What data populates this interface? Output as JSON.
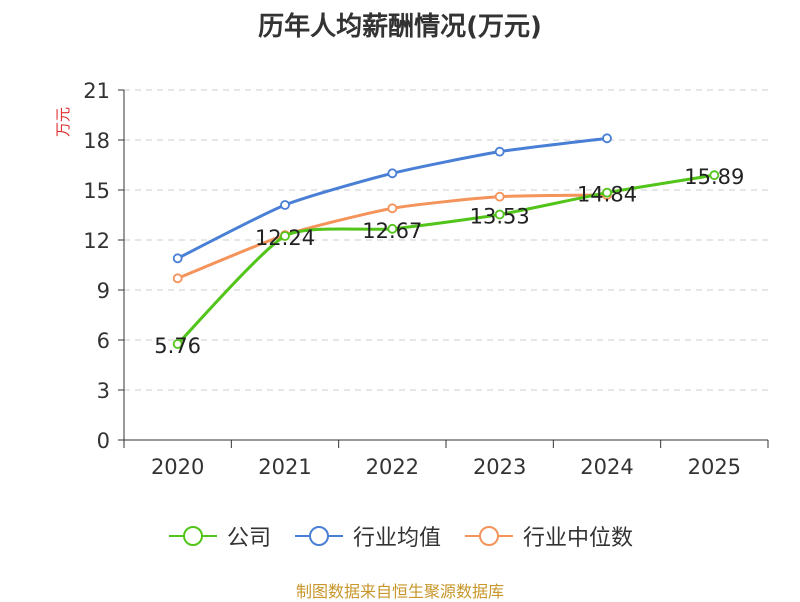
{
  "chart_data": {
    "type": "line",
    "title": "历年人均薪酬情况(万元)",
    "ylabel": "万元",
    "xlabel": "",
    "categories": [
      "2020",
      "2021",
      "2022",
      "2023",
      "2024",
      "2025"
    ],
    "ylim": [
      0,
      21
    ],
    "yticks": [
      0,
      3,
      6,
      9,
      12,
      15,
      18,
      21
    ],
    "grid": true,
    "legend_position": "bottom",
    "series": [
      {
        "name": "公司",
        "color": "#52c41a",
        "values": [
          5.76,
          12.24,
          12.67,
          13.53,
          14.84,
          15.89
        ],
        "labels": [
          "5.76",
          "12.24",
          "12.67",
          "13.53",
          "14.84",
          "15.89"
        ]
      },
      {
        "name": "行业均值",
        "color": "#4a7fd6",
        "values": [
          10.9,
          14.1,
          16.0,
          17.3,
          18.1,
          null
        ]
      },
      {
        "name": "行业中位数",
        "color": "#f4935a",
        "values": [
          9.7,
          12.3,
          13.9,
          14.6,
          14.7,
          null
        ]
      }
    ]
  },
  "source_note": "制图数据来自恒生聚源数据库"
}
